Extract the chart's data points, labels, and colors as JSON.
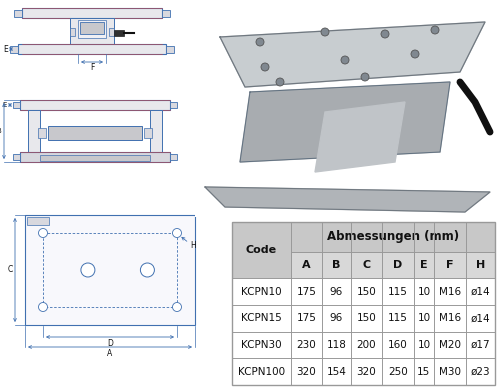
{
  "table_header1": "Abmessungen (mm)",
  "table_col_header": [
    "Code",
    "A",
    "B",
    "C",
    "D",
    "E",
    "F",
    "H"
  ],
  "table_rows": [
    [
      "KCPN10",
      "175",
      "96",
      "150",
      "115",
      "10",
      "M16",
      "ø14"
    ],
    [
      "KCPN15",
      "175",
      "96",
      "150",
      "115",
      "10",
      "M16",
      "ø14"
    ],
    [
      "KCPN30",
      "230",
      "118",
      "200",
      "160",
      "10",
      "M20",
      "ø17"
    ],
    [
      "KCPN100",
      "320",
      "154",
      "320",
      "250",
      "15",
      "M30",
      "ø23"
    ]
  ],
  "header_bg": "#c8c8c8",
  "subheader_bg": "#d8d8d8",
  "row_bg": "#ffffff",
  "border_color": "#999999",
  "text_color": "#111111",
  "lc": "#4070b0",
  "lc_thin": "#6090c0",
  "bg_color": "#ffffff",
  "diag_fill": "#e8e8ec",
  "diag_fill2": "#d8d8de",
  "diag_fill3": "#c8c8cc"
}
